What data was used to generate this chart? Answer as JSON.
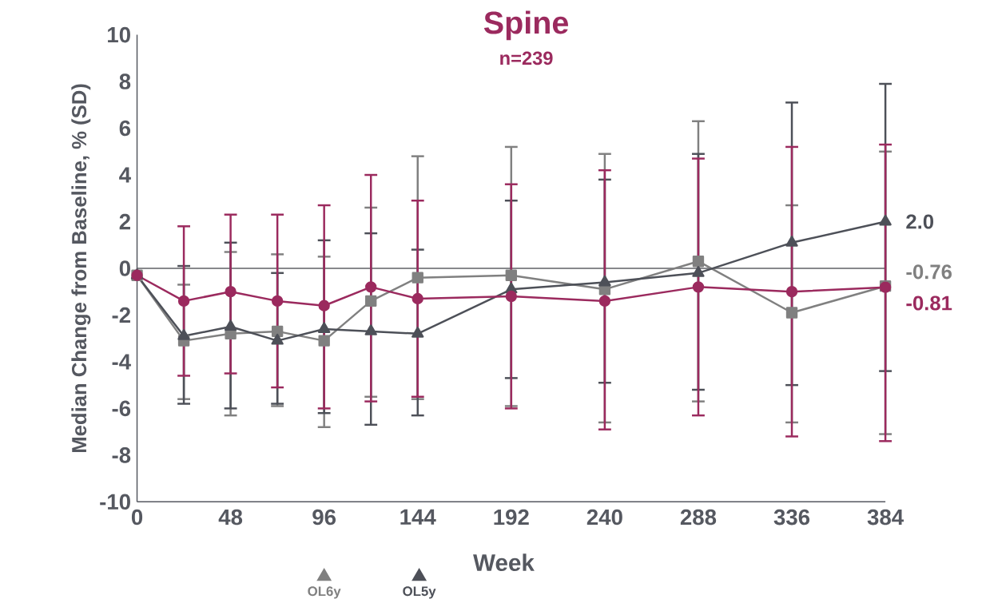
{
  "chart_data": {
    "type": "line",
    "title": "Spine",
    "subtitle": "n=239",
    "xlabel": "Week",
    "ylabel": "Median Change from Baseline, % (SD)",
    "x": [
      0,
      24,
      48,
      72,
      96,
      120,
      144,
      192,
      240,
      288,
      336,
      384
    ],
    "xlim": [
      0,
      384
    ],
    "xticks": [
      0,
      48,
      96,
      144,
      192,
      240,
      288,
      336,
      384
    ],
    "ylim": [
      -10,
      10
    ],
    "yticks": [
      -10,
      -8,
      -6,
      -4,
      -2,
      0,
      2,
      4,
      6,
      8,
      10
    ],
    "legend": "bottom",
    "ref_lines": [
      {
        "axis": "y",
        "value": 0,
        "color": "#5f6066"
      }
    ],
    "series": [
      {
        "name": "OL6y",
        "color": "#808080",
        "marker": "square",
        "values": [
          -0.3,
          -3.1,
          -2.8,
          -2.7,
          -3.1,
          -1.4,
          -0.4,
          -0.3,
          -0.9,
          0.3,
          -1.9,
          -0.76
        ],
        "errors": [
          null,
          [
            -5.6,
            -0.7
          ],
          [
            -6.3,
            0.7
          ],
          [
            -5.9,
            0.6
          ],
          [
            -6.8,
            0.5
          ],
          [
            -5.5,
            2.6
          ],
          [
            -5.6,
            4.8
          ],
          [
            -5.9,
            5.2
          ],
          [
            -6.6,
            4.9
          ],
          [
            -5.7,
            6.3
          ],
          [
            -6.6,
            2.7
          ],
          [
            -7.1,
            5.0
          ]
        ],
        "value_labels": [
          null,
          null,
          null,
          null,
          null,
          null,
          null,
          null,
          null,
          null,
          null,
          "-0.76"
        ]
      },
      {
        "name": "OL5y",
        "color": "#4d5058",
        "marker": "triangle",
        "values": [
          -0.3,
          -2.9,
          -2.5,
          -3.1,
          -2.6,
          -2.7,
          -2.8,
          -0.9,
          -0.6,
          -0.2,
          1.1,
          2.0
        ],
        "errors": [
          null,
          [
            -5.8,
            0.1
          ],
          [
            -6.0,
            1.1
          ],
          [
            -5.8,
            -0.2
          ],
          [
            -6.2,
            1.2
          ],
          [
            -6.7,
            1.5
          ],
          [
            -6.3,
            0.8
          ],
          [
            -4.7,
            2.9
          ],
          [
            -4.9,
            3.8
          ],
          [
            -5.2,
            4.9
          ],
          [
            -5.0,
            7.1
          ],
          [
            -4.4,
            7.9
          ]
        ],
        "value_labels": [
          null,
          null,
          null,
          null,
          null,
          null,
          null,
          null,
          null,
          null,
          null,
          "2.0"
        ]
      },
      {
        "color": "#9b2a5e",
        "marker": "circle",
        "values": [
          -0.3,
          -1.4,
          -1.0,
          -1.4,
          -1.6,
          -0.8,
          -1.3,
          -1.2,
          -1.4,
          -0.8,
          -1.0,
          -0.81
        ],
        "errors": [
          null,
          [
            -4.6,
            1.8
          ],
          [
            -4.5,
            2.3
          ],
          [
            -5.1,
            2.3
          ],
          [
            -6.0,
            2.7
          ],
          [
            -5.7,
            4.0
          ],
          [
            -5.5,
            2.9
          ],
          [
            -6.0,
            3.6
          ],
          [
            -6.9,
            4.2
          ],
          [
            -6.3,
            4.7
          ],
          [
            -7.2,
            5.2
          ],
          [
            -7.4,
            5.3
          ]
        ],
        "value_labels": [
          null,
          null,
          null,
          null,
          null,
          null,
          null,
          null,
          null,
          null,
          null,
          "-0.81"
        ]
      }
    ]
  }
}
